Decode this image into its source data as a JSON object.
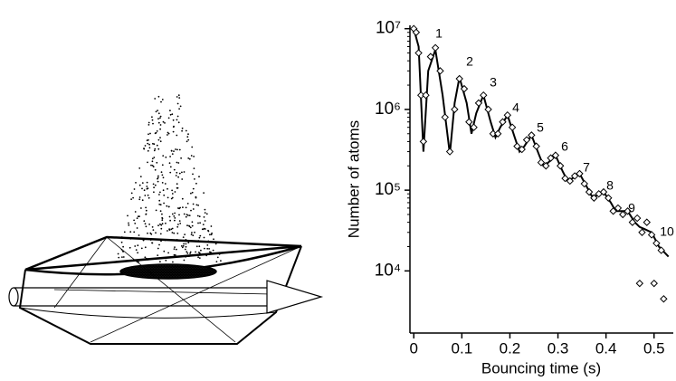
{
  "chart_data": {
    "type": "line",
    "xlabel": "Bouncing time (s)",
    "ylabel": "Number of atoms",
    "xlim": [
      -0.008,
      0.54
    ],
    "xticks": [
      0,
      0.1,
      0.2,
      0.3,
      0.4,
      0.5
    ],
    "ylim": [
      1700,
      11000000
    ],
    "yticks": [
      {
        "value": 10000,
        "label": "10⁴"
      },
      {
        "value": 100000,
        "label": "10⁵"
      },
      {
        "value": 1000000,
        "label": "10⁶"
      },
      {
        "value": 10000000,
        "label": "10⁷"
      }
    ],
    "log_y": true,
    "series": [
      {
        "type": "line",
        "color": "#000000",
        "x": [
          0,
          0.01,
          0.02,
          0.03,
          0.045,
          0.06,
          0.075,
          0.085,
          0.095,
          0.11,
          0.12,
          0.13,
          0.145,
          0.16,
          0.17,
          0.18,
          0.195,
          0.21,
          0.22,
          0.23,
          0.245,
          0.26,
          0.27,
          0.28,
          0.295,
          0.31,
          0.32,
          0.33,
          0.345,
          0.36,
          0.37,
          0.38,
          0.395,
          0.41,
          0.42,
          0.43,
          0.445,
          0.46,
          0.47,
          0.48,
          0.495,
          0.51,
          0.53
        ],
        "values": [
          10000000,
          6000000,
          300000,
          3000000,
          5500000,
          1500000,
          280000,
          1200000,
          2500000,
          1200000,
          500000,
          900000,
          1500000,
          700000,
          450000,
          600000,
          850000,
          450000,
          300000,
          350000,
          480000,
          280000,
          200000,
          220000,
          270000,
          170000,
          130000,
          140000,
          160000,
          110000,
          85000,
          85000,
          95000,
          70000,
          55000,
          55000,
          55000,
          40000,
          35000,
          33000,
          30000,
          20000,
          15000
        ]
      },
      {
        "type": "scatter",
        "marker": "diamond",
        "color": "#000000",
        "x": [
          0,
          0.005,
          0.01,
          0.015,
          0.02,
          0.025,
          0.035,
          0.045,
          0.055,
          0.065,
          0.075,
          0.085,
          0.095,
          0.105,
          0.115,
          0.125,
          0.135,
          0.145,
          0.155,
          0.165,
          0.175,
          0.185,
          0.195,
          0.205,
          0.215,
          0.225,
          0.235,
          0.245,
          0.255,
          0.265,
          0.275,
          0.285,
          0.295,
          0.305,
          0.315,
          0.325,
          0.335,
          0.345,
          0.355,
          0.365,
          0.375,
          0.385,
          0.395,
          0.405,
          0.415,
          0.425,
          0.435,
          0.445,
          0.455,
          0.465,
          0.475,
          0.485,
          0.495,
          0.505,
          0.515,
          0.47,
          0.5,
          0.52
        ],
        "values": [
          10000000,
          9000000,
          5000000,
          1500000,
          400000,
          1500000,
          4500000,
          5800000,
          3000000,
          800000,
          300000,
          1000000,
          2400000,
          1800000,
          700000,
          600000,
          1200000,
          1500000,
          1000000,
          500000,
          500000,
          700000,
          850000,
          600000,
          350000,
          320000,
          420000,
          480000,
          350000,
          220000,
          200000,
          250000,
          270000,
          200000,
          140000,
          130000,
          150000,
          160000,
          120000,
          95000,
          80000,
          90000,
          95000,
          80000,
          55000,
          60000,
          50000,
          55000,
          40000,
          45000,
          30000,
          40000,
          28000,
          22000,
          18000,
          7000,
          7000,
          4500
        ]
      }
    ],
    "annotations": [
      "1",
      "2",
      "3",
      "4",
      "5",
      "6",
      "7",
      "8",
      "9",
      "10"
    ]
  }
}
